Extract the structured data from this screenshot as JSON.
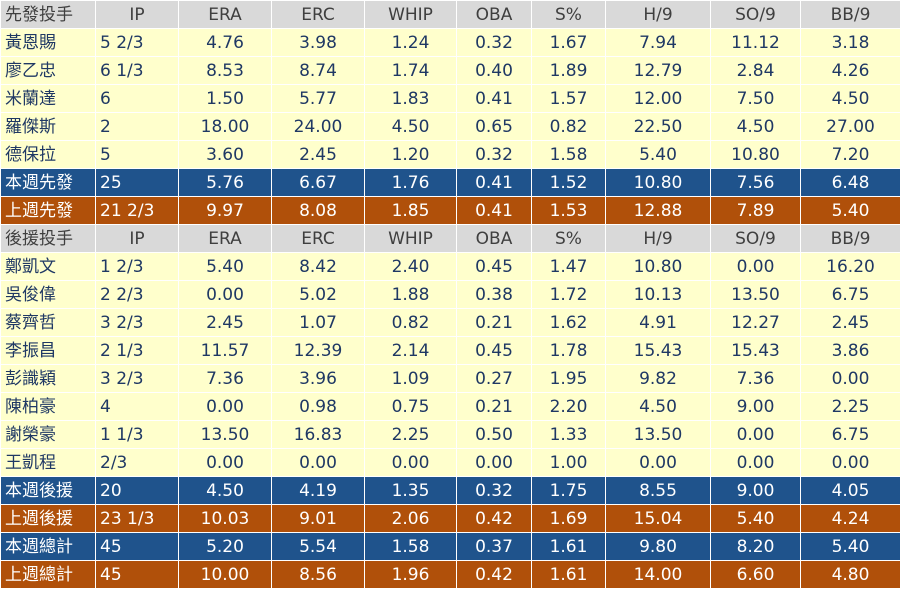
{
  "chart_data": {
    "type": "table",
    "columns": [
      "IP",
      "ERA",
      "ERC",
      "WHIP",
      "OBA",
      "S%",
      "H/9",
      "SO/9",
      "BB/9"
    ],
    "sections": [
      {
        "label": "先發投手",
        "rows": [
          {
            "name": "黃恩賜",
            "values": [
              "5 2/3",
              "4.76",
              "3.98",
              "1.24",
              "0.32",
              "1.67",
              "7.94",
              "11.12",
              "3.18"
            ]
          },
          {
            "name": "廖乙忠",
            "values": [
              "6 1/3",
              "8.53",
              "8.74",
              "1.74",
              "0.40",
              "1.89",
              "12.79",
              "2.84",
              "4.26"
            ]
          },
          {
            "name": "米蘭達",
            "values": [
              "6",
              "1.50",
              "5.77",
              "1.83",
              "0.41",
              "1.57",
              "12.00",
              "7.50",
              "4.50"
            ]
          },
          {
            "name": "羅傑斯",
            "values": [
              "2",
              "18.00",
              "24.00",
              "4.50",
              "0.65",
              "0.82",
              "22.50",
              "4.50",
              "27.00"
            ]
          },
          {
            "name": "德保拉",
            "values": [
              "5",
              "3.60",
              "2.45",
              "1.20",
              "0.32",
              "1.58",
              "5.40",
              "10.80",
              "7.20"
            ]
          }
        ],
        "summaries": [
          {
            "name": "本週先發",
            "style": "this-week",
            "values": [
              "25",
              "5.76",
              "6.67",
              "1.76",
              "0.41",
              "1.52",
              "10.80",
              "7.56",
              "6.48"
            ]
          },
          {
            "name": "上週先發",
            "style": "last-week",
            "values": [
              "21 2/3",
              "9.97",
              "8.08",
              "1.85",
              "0.41",
              "1.53",
              "12.88",
              "7.89",
              "5.40"
            ]
          }
        ]
      },
      {
        "label": "後援投手",
        "rows": [
          {
            "name": "鄭凱文",
            "values": [
              "1 2/3",
              "5.40",
              "8.42",
              "2.40",
              "0.45",
              "1.47",
              "10.80",
              "0.00",
              "16.20"
            ]
          },
          {
            "name": "吳俊偉",
            "values": [
              "2 2/3",
              "0.00",
              "5.02",
              "1.88",
              "0.38",
              "1.72",
              "10.13",
              "13.50",
              "6.75"
            ]
          },
          {
            "name": "蔡齊哲",
            "values": [
              "3 2/3",
              "2.45",
              "1.07",
              "0.82",
              "0.21",
              "1.62",
              "4.91",
              "12.27",
              "2.45"
            ]
          },
          {
            "name": "李振昌",
            "values": [
              "2 1/3",
              "11.57",
              "12.39",
              "2.14",
              "0.45",
              "1.78",
              "15.43",
              "15.43",
              "3.86"
            ]
          },
          {
            "name": "彭識穎",
            "values": [
              "3 2/3",
              "7.36",
              "3.96",
              "1.09",
              "0.27",
              "1.95",
              "9.82",
              "7.36",
              "0.00"
            ]
          },
          {
            "name": "陳柏豪",
            "values": [
              "4",
              "0.00",
              "0.98",
              "0.75",
              "0.21",
              "2.20",
              "4.50",
              "9.00",
              "2.25"
            ]
          },
          {
            "name": "謝榮豪",
            "values": [
              "1 1/3",
              "13.50",
              "16.83",
              "2.25",
              "0.50",
              "1.33",
              "13.50",
              "0.00",
              "6.75"
            ]
          },
          {
            "name": "王凱程",
            "values": [
              "2/3",
              "0.00",
              "0.00",
              "0.00",
              "0.00",
              "1.00",
              "0.00",
              "0.00",
              "0.00"
            ]
          }
        ],
        "summaries": [
          {
            "name": "本週後援",
            "style": "this-week",
            "values": [
              "20",
              "4.50",
              "4.19",
              "1.35",
              "0.32",
              "1.75",
              "8.55",
              "9.00",
              "4.05"
            ]
          },
          {
            "name": "上週後援",
            "style": "last-week",
            "values": [
              "23 1/3",
              "10.03",
              "9.01",
              "2.06",
              "0.42",
              "1.69",
              "15.04",
              "5.40",
              "4.24"
            ]
          }
        ]
      }
    ],
    "totals": [
      {
        "name": "本週總計",
        "style": "this-week",
        "values": [
          "45",
          "5.20",
          "5.54",
          "1.58",
          "0.37",
          "1.61",
          "9.80",
          "8.20",
          "5.40"
        ]
      },
      {
        "name": "上週總計",
        "style": "last-week",
        "values": [
          "45",
          "10.00",
          "8.56",
          "1.96",
          "0.42",
          "1.61",
          "14.00",
          "6.60",
          "4.80"
        ]
      }
    ]
  },
  "colors": {
    "header_bg": "#d9d9d9",
    "header_text": "#3f3f3f",
    "data_bg": "#ffffcc",
    "data_text": "#1f3864",
    "this_week_bg": "#1f538c",
    "last_week_bg": "#b0500a",
    "summary_text": "#ffffff",
    "grid": "#ffffff"
  }
}
